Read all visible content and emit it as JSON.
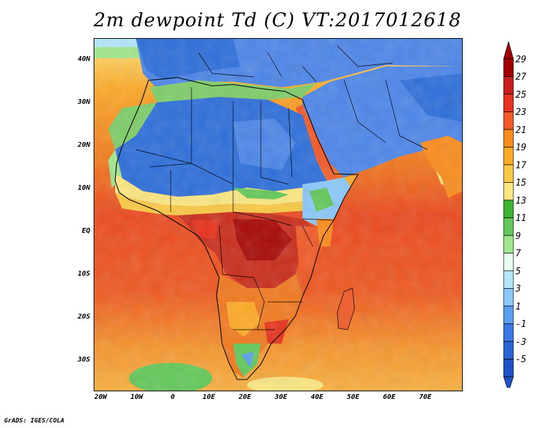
{
  "title": "2m dewpoint Td (C) VT:2017012618",
  "credit": "GrADS: IGES/COLA",
  "map": {
    "variable": "2m dewpoint",
    "units": "C",
    "valid_time": "2017012618",
    "lon_range": [
      -22,
      80
    ],
    "lat_range": [
      -37,
      45
    ],
    "lat_ticks": [
      {
        "value": 40,
        "label": "40N"
      },
      {
        "value": 30,
        "label": "30N"
      },
      {
        "value": 20,
        "label": "20N"
      },
      {
        "value": 10,
        "label": "10N"
      },
      {
        "value": 0,
        "label": "EQ"
      },
      {
        "value": -10,
        "label": "10S"
      },
      {
        "value": -20,
        "label": "20S"
      },
      {
        "value": -30,
        "label": "30S"
      }
    ],
    "lon_ticks": [
      {
        "value": -20,
        "label": "20W"
      },
      {
        "value": -10,
        "label": "10W"
      },
      {
        "value": 0,
        "label": "0"
      },
      {
        "value": 10,
        "label": "10E"
      },
      {
        "value": 20,
        "label": "20E"
      },
      {
        "value": 30,
        "label": "30E"
      },
      {
        "value": 40,
        "label": "40E"
      },
      {
        "value": 50,
        "label": "50E"
      },
      {
        "value": 60,
        "label": "60E"
      },
      {
        "value": 70,
        "label": "70E"
      }
    ]
  },
  "colorbar": {
    "labels": [
      "29",
      "27",
      "25",
      "23",
      "21",
      "19",
      "17",
      "15",
      "13",
      "11",
      "9",
      "7",
      "5",
      "3",
      "1",
      "-1",
      "-3",
      "-5"
    ],
    "colors": [
      "#a00000",
      "#c81e1e",
      "#e6321e",
      "#f05a28",
      "#fa8c1e",
      "#fcaa28",
      "#f8c846",
      "#fae682",
      "#3cb432",
      "#64c85a",
      "#a0e68c",
      "#e6fff0",
      "#b4e6fa",
      "#8cc8fa",
      "#5aa0f0",
      "#3c78e6",
      "#2864d2",
      "#1e50c8"
    ]
  },
  "colors": {
    "ocean_tropical": "#ea4a20",
    "ocean_subtropical": "#f59a35",
    "sahara": "#2f6fda",
    "arabia": "#4d86e8",
    "congo": "#c92e1c",
    "kalahari": "#f07a20",
    "mediterranean": "#7fcd6a",
    "boundary": "#000000"
  }
}
